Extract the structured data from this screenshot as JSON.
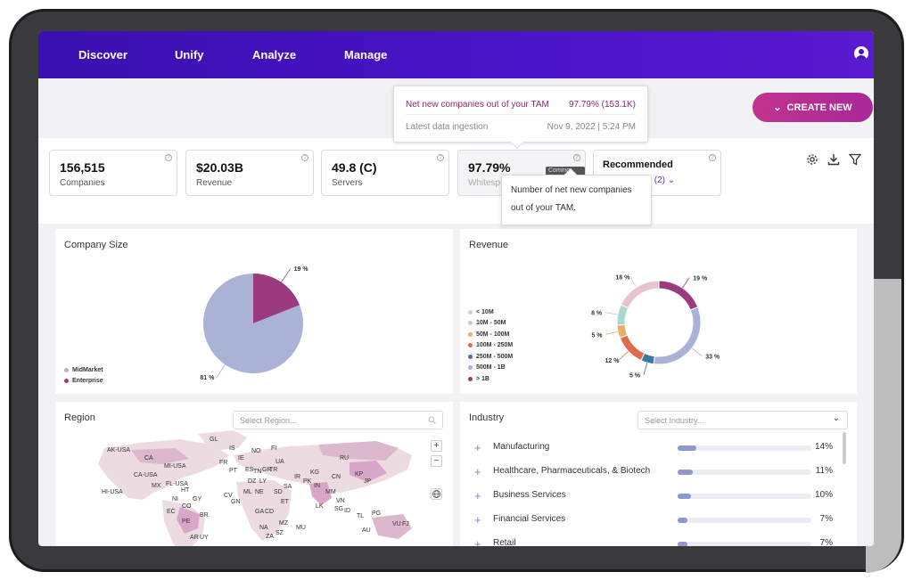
{
  "nav": {
    "items": [
      "Discover",
      "Unify",
      "Analyze",
      "Manage"
    ]
  },
  "tam_tooltip": {
    "label1": "Net new companies out of your TAM",
    "value1": "97.79% (153.1K)",
    "label2": "Latest data ingestion",
    "value2": "Nov 9, 2022 | 5:24 PM"
  },
  "create_button": {
    "label": "CREATE NEW"
  },
  "metrics": [
    {
      "value": "156,515",
      "label": "Companies"
    },
    {
      "value": "$20.03B",
      "label": "Revenue"
    },
    {
      "value": "49.8 (C)",
      "label": "Servers"
    },
    {
      "value": "97.79%",
      "label": "Whitesp",
      "badge": "Coming soon"
    }
  ],
  "recommended": {
    "title": "Recommended",
    "sub": "s (2)"
  },
  "metric_tooltip": {
    "text": "Number of net new companies out of your TAM."
  },
  "company_size": {
    "title": "Company Size",
    "legend": [
      {
        "name": "MidMarket",
        "color": "#aab3d6"
      },
      {
        "name": "Enterprise",
        "color": "#9b3a7e"
      }
    ],
    "values": [
      81,
      19
    ],
    "labels": [
      "81 %",
      "19 %"
    ]
  },
  "revenue": {
    "title": "Revenue",
    "legend": [
      {
        "name": "< 10M",
        "color": "#e8c3cc"
      },
      {
        "name": "10M - 50M",
        "color": "#a8d8cf"
      },
      {
        "name": "50M - 100M",
        "color": "#e3b066"
      },
      {
        "name": "100M - 250M",
        "color": "#e06a4f"
      },
      {
        "name": "250M - 500M",
        "color": "#3b78a8"
      },
      {
        "name": "500M - 1B",
        "color": "#aab3d6"
      },
      {
        "name": "> 1B",
        "color": "#9b3a7e"
      }
    ],
    "values": [
      18,
      8,
      5,
      12,
      5,
      33,
      19
    ],
    "labels": [
      "18 %",
      "8 %",
      "5 %",
      "12 %",
      "5 %",
      "33 %",
      "19 %"
    ]
  },
  "region": {
    "title": "Region",
    "placeholder": "Select Region...",
    "labels": [
      "AK-USA",
      "GL",
      "IS",
      "NO",
      "FI",
      "CA",
      "IE",
      "FR",
      "UA",
      "MI-USA",
      "PT",
      "ES",
      "TN",
      "GR",
      "TR",
      "RU",
      "CA-USA",
      "FL-USA",
      "DZ",
      "LY",
      "IR",
      "PK",
      "KG",
      "CN",
      "KP",
      "JP",
      "MX",
      "HT",
      "ML",
      "NE",
      "SD",
      "SA",
      "IN",
      "MM",
      "HI-USA",
      "NI",
      "GY",
      "CV",
      "GN",
      "ET",
      "LK",
      "VN",
      "CO",
      "EC",
      "BR",
      "GA",
      "CD",
      "SG",
      "ID",
      "TL",
      "PG",
      "PE",
      "NA",
      "MZ",
      "MU",
      "VU",
      "FJ",
      "AR",
      "UY",
      "ZA",
      "SZ",
      "AU"
    ]
  },
  "industry": {
    "title": "Industry",
    "placeholder": "Select Industry...",
    "rows": [
      {
        "name": "Manufacturing",
        "pct": "14%",
        "value": 14
      },
      {
        "name": "Healthcare, Pharmaceuticals, & Biotech",
        "pct": "11%",
        "value": 11
      },
      {
        "name": "Business Services",
        "pct": "10%",
        "value": 10
      },
      {
        "name": "Financial Services",
        "pct": "7%",
        "value": 7
      },
      {
        "name": "Retail",
        "pct": "7%",
        "value": 7
      }
    ]
  }
}
